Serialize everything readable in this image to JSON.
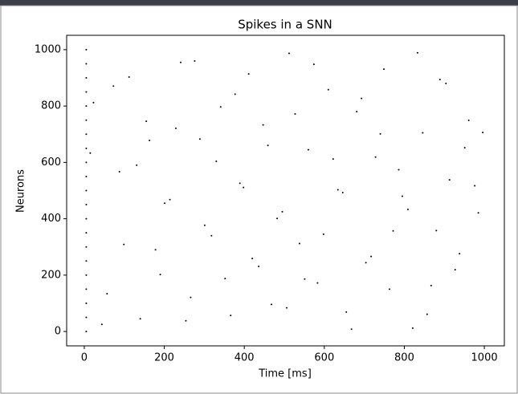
{
  "chart_data": {
    "type": "scatter",
    "title": "Spikes in a SNN",
    "xlabel": "Time [ms]",
    "ylabel": "Neurons",
    "color": "#000000",
    "x": [
      23,
      57,
      88,
      112,
      140,
      163,
      178,
      201,
      229,
      254,
      276,
      301,
      330,
      352,
      377,
      398,
      420,
      447,
      468,
      495,
      512,
      538,
      560,
      583,
      610,
      634,
      655,
      681,
      704,
      728,
      749,
      772,
      795,
      821,
      846,
      867,
      889,
      913,
      938,
      961,
      985,
      15,
      44,
      73,
      99,
      131,
      155,
      190,
      214,
      241,
      266,
      289,
      318,
      341,
      366,
      389,
      411,
      436,
      459,
      482,
      506,
      527,
      551,
      574,
      598,
      622,
      646,
      668,
      693,
      717,
      740,
      763,
      786,
      809,
      833,
      857,
      880,
      904,
      927,
      951,
      976,
      996,
      5,
      5,
      5,
      5,
      5,
      5,
      5,
      5,
      5,
      5,
      5,
      5,
      5,
      5,
      5,
      5,
      5,
      5,
      5,
      5,
      5
    ],
    "y": [
      812,
      134,
      567,
      903,
      45,
      678,
      290,
      455,
      721,
      38,
      960,
      377,
      604,
      188,
      842,
      511,
      259,
      733,
      96,
      425,
      987,
      312,
      645,
      172,
      858,
      503,
      69,
      780,
      244,
      619,
      931,
      357,
      480,
      12,
      705,
      163,
      894,
      538,
      276,
      749,
      421,
      633,
      25,
      871,
      309,
      590,
      746,
      202,
      468,
      955,
      121,
      683,
      340,
      797,
      57,
      526,
      914,
      231,
      660,
      401,
      84,
      772,
      186,
      948,
      345,
      612,
      493,
      8,
      827,
      266,
      701,
      150,
      574,
      433,
      989,
      61,
      358,
      880,
      219,
      652,
      517,
      706,
      0,
      50,
      100,
      150,
      200,
      250,
      300,
      350,
      400,
      450,
      500,
      550,
      600,
      650,
      700,
      750,
      800,
      850,
      900,
      950,
      1000
    ],
    "xlim": [
      -44,
      1050
    ],
    "ylim": [
      -51,
      1051
    ],
    "xticks": [
      0,
      200,
      400,
      600,
      800,
      1000
    ],
    "yticks": [
      0,
      200,
      400,
      600,
      800,
      1000
    ]
  }
}
